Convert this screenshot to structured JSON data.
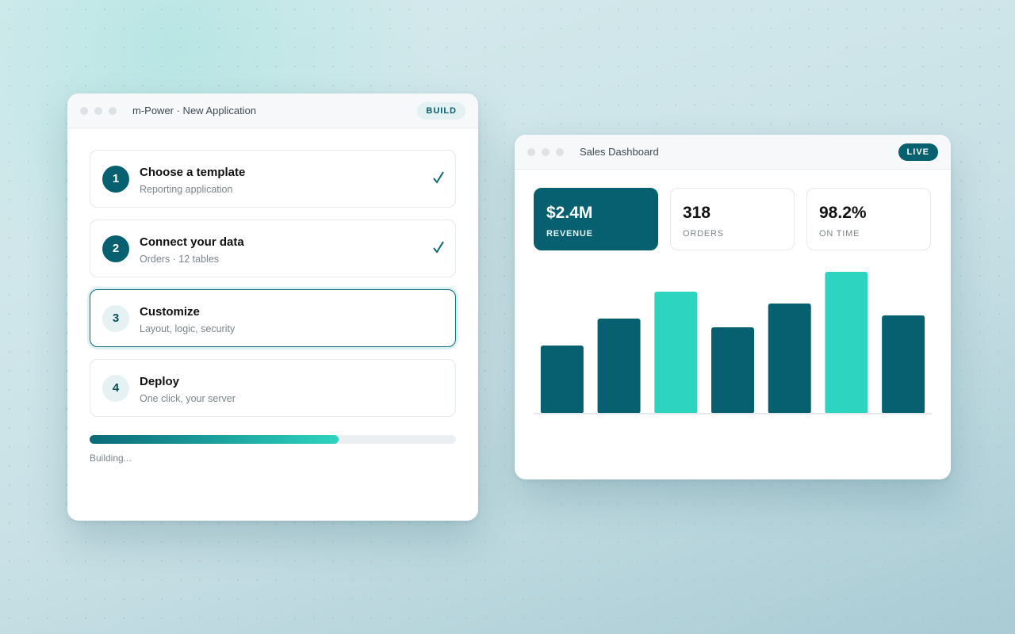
{
  "builder": {
    "window_title": "m-Power · New Application",
    "badge": "BUILD",
    "steps": [
      {
        "number": "1",
        "title": "Choose a template",
        "subtitle": "Reporting application",
        "status": "done"
      },
      {
        "number": "2",
        "title": "Connect your data",
        "subtitle": "Orders · 12 tables",
        "status": "done"
      },
      {
        "number": "3",
        "title": "Customize",
        "subtitle": "Layout, logic, security",
        "status": "active"
      },
      {
        "number": "4",
        "title": "Deploy",
        "subtitle": "One click, your server",
        "status": "pending"
      }
    ],
    "progress": 68,
    "progress_max": 100,
    "progress_label": "Building..."
  },
  "dashboard": {
    "window_title": "Sales Dashboard",
    "badge": "LIVE",
    "kpis": [
      {
        "value": "$2.4M",
        "label": "REVENUE",
        "highlight": true
      },
      {
        "value": "318",
        "label": "ORDERS",
        "highlight": false
      },
      {
        "value": "98.2%",
        "label": "ON TIME",
        "highlight": false
      }
    ],
    "chart": {
      "type": "bar",
      "values": [
        86,
        120,
        154,
        109,
        139,
        179,
        124
      ],
      "colors": [
        "#07606f",
        "#07606f",
        "#2dd4c0",
        "#07606f",
        "#07606f",
        "#2dd4c0",
        "#07606f"
      ],
      "ylim": [
        0,
        200
      ]
    }
  }
}
